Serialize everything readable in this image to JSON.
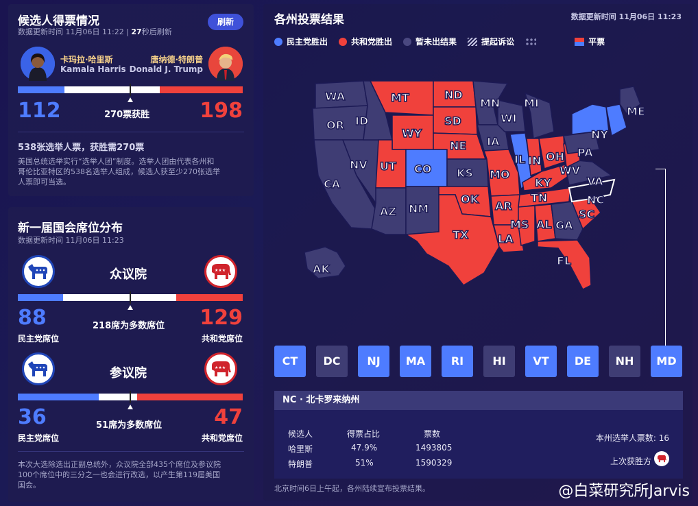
{
  "candidates": {
    "title": "候选人得票情况",
    "updated_prefix": "数据更新时间 11月06日 11:22 |",
    "countdown": "27",
    "countdown_suffix": "秒后刷新",
    "refresh_label": "刷新",
    "harris": {
      "name_cn": "卡玛拉·哈里斯",
      "name_en": "Kamala Harris",
      "votes": "112"
    },
    "trump": {
      "name_cn": "唐纳德·特朗普",
      "name_en": "Donald J. Trump",
      "votes": "198"
    },
    "threshold_label": "270票获胜",
    "summary_title": "538张选举人票，获胜需270票",
    "summary_text_1": "美国总统选举实行“选举人团”制度。选举人团由代表各州和",
    "summary_text_2": "哥伦比亚特区的538名选举人组成，候选人获至少270张选举",
    "summary_text_3": "人票即可当选。",
    "bar_fraction": {
      "harris": 0.208,
      "trump": 0.368
    }
  },
  "congress": {
    "title": "新一届国会席位分布",
    "updated": "数据更新时间 11月06日 11:23",
    "house": {
      "label": "众议院",
      "dem": "88",
      "rep": "129",
      "dem_label": "民主党席位",
      "rep_label": "共和党席位",
      "threshold_label": "218席为多数席位",
      "bar_fraction": {
        "dem": 0.202,
        "rep": 0.297
      }
    },
    "senate": {
      "label": "参议院",
      "dem": "36",
      "rep": "47",
      "dem_label": "民主党席位",
      "rep_label": "共和党席位",
      "threshold_label": "51席为多数席位",
      "bar_fraction": {
        "dem": 0.36,
        "rep": 0.47
      }
    },
    "footer_1": "本次大选除选出正副总统外，众议院全部435个席位及参议院",
    "footer_2": "100个席位中的三分之一也会进行改选，以产生第119届美国",
    "footer_3": "国会。"
  },
  "map": {
    "title": "各州投票结果",
    "updated": "数据更新时间 11月06日 11:23",
    "legend": {
      "dem": "民主党胜出",
      "rep": "共和党胜出",
      "pending": "暂未出结果",
      "lawsuit": "提起诉讼",
      "tie": "平票"
    },
    "state_labels": {
      "WA": "WA",
      "OR": "OR",
      "CA": "CA",
      "NV": "NV",
      "ID": "ID",
      "MT": "MT",
      "WY": "WY",
      "UT": "UT",
      "CO": "CO",
      "AZ": "AZ",
      "NM": "NM",
      "ND": "ND",
      "SD": "SD",
      "NE": "NE",
      "KS": "KS",
      "OK": "OK",
      "TX": "TX",
      "MN": "MN",
      "IA": "IA",
      "MO": "MO",
      "AR": "AR",
      "LA": "LA",
      "WI": "WI",
      "IL": "IL",
      "MI": "MI",
      "IN": "IN",
      "OH": "OH",
      "KY": "KY",
      "TN": "TN",
      "MS": "MS",
      "AL": "AL",
      "GA": "GA",
      "FL": "FL",
      "SC": "SC",
      "NC": "NC",
      "VA": "VA",
      "WV": "WV",
      "PA": "PA",
      "NY": "NY",
      "ME": "ME",
      "AK": "AK"
    },
    "small_states": [
      {
        "code": "CT",
        "status": "dem"
      },
      {
        "code": "DC",
        "status": "pending"
      },
      {
        "code": "NJ",
        "status": "dem"
      },
      {
        "code": "MA",
        "status": "dem"
      },
      {
        "code": "RI",
        "status": "dem"
      },
      {
        "code": "HI",
        "status": "pending"
      },
      {
        "code": "VT",
        "status": "dem"
      },
      {
        "code": "DE",
        "status": "dem"
      },
      {
        "code": "NH",
        "status": "pending"
      },
      {
        "code": "MD",
        "status": "dem"
      }
    ],
    "detail": {
      "header": "NC · 北卡罗来纳州",
      "col_candidate": "候选人",
      "col_share": "得票占比",
      "col_votes": "票数",
      "rows": [
        {
          "name": "哈里斯",
          "share": "47.9%",
          "votes": "1493805"
        },
        {
          "name": "特朗普",
          "share": "51%",
          "votes": "1590329"
        }
      ],
      "electoral_votes": "本州选举人票数: 16",
      "last_winner": "上次获胜方"
    },
    "footnote": "北京时间6日上午起，各州陆续宣布投票结果。",
    "watermark": "@白菜研究所Jarvis"
  },
  "colors": {
    "dem": "#4e7cff",
    "rep": "#f0413c",
    "pending": "#3f3d74"
  }
}
